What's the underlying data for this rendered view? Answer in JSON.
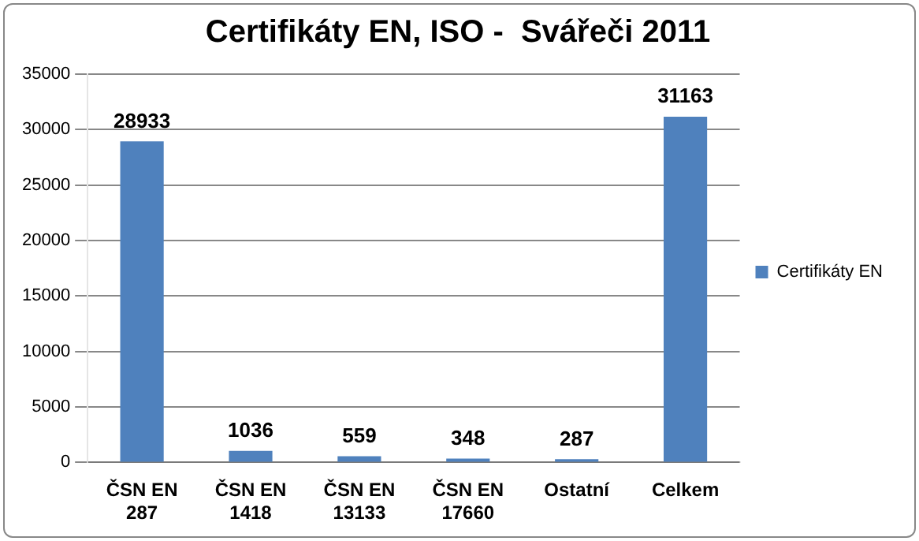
{
  "chart_data": {
    "type": "bar",
    "title": "Certifikáty EN, ISO -  Svářeči 2011",
    "categories": [
      "ČSN EN 287",
      "ČSN EN 1418",
      "ČSN EN 13133",
      "ČSN EN 17660",
      "Ostatní",
      "Celkem"
    ],
    "series": [
      {
        "name": "Certifikáty EN",
        "color": "#4f81bd",
        "values": [
          28933,
          1036,
          559,
          348,
          287,
          31163
        ]
      }
    ],
    "ylim": [
      0,
      35000
    ],
    "yticks": [
      0,
      5000,
      10000,
      15000,
      20000,
      25000,
      30000,
      35000
    ],
    "grid": "y",
    "legend": "right",
    "data_labels": true
  }
}
